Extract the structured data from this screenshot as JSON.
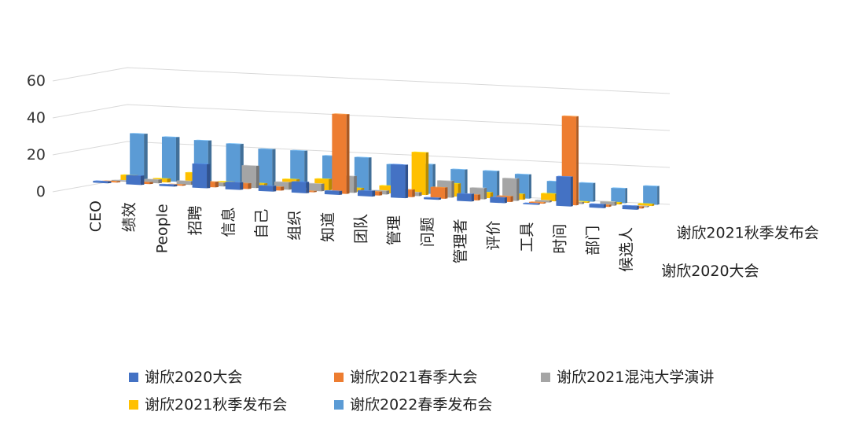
{
  "chart_data": {
    "type": "bar3d",
    "title": "",
    "categories": [
      "CEO",
      "绩效",
      "People",
      "招聘",
      "信息",
      "自己",
      "组织",
      "知道",
      "团队",
      "管理",
      "问题",
      "管理者",
      "评价",
      "工具",
      "时间",
      "部门",
      "候选人"
    ],
    "series": [
      {
        "name": "谢欣2020大会",
        "color": "#4472C4",
        "values": [
          1,
          5,
          1,
          13,
          4,
          3,
          6,
          2,
          3,
          18,
          1,
          4,
          3,
          0,
          16,
          2,
          2
        ]
      },
      {
        "name": "谢欣2021春季大会",
        "color": "#ED7D31",
        "values": [
          0,
          1,
          0,
          3,
          3,
          2,
          0,
          43,
          2,
          4,
          6,
          3,
          3,
          0,
          48,
          1,
          1
        ]
      },
      {
        "name": "谢欣2021混沌大学演讲",
        "color": "#A5A5A5",
        "values": [
          0,
          2,
          2,
          2,
          12,
          4,
          4,
          9,
          2,
          2,
          9,
          6,
          12,
          1,
          1,
          2,
          0
        ]
      },
      {
        "name": "谢欣2021秋季发布会",
        "color": "#FFC000",
        "values": [
          3,
          2,
          6,
          2,
          2,
          5,
          6,
          2,
          4,
          23,
          7,
          3,
          3,
          4,
          0,
          1,
          1
        ]
      },
      {
        "name": "谢欣2022春季发布会",
        "color": "#5B9BD5",
        "values": [
          25,
          24,
          23,
          22,
          20,
          20,
          18,
          18,
          15,
          16,
          14,
          14,
          13,
          10,
          10,
          8,
          10
        ]
      }
    ],
    "visible_series_axis_labels": [
      "谢欣2021秋季发布会",
      "谢欣2020大会"
    ],
    "zlabel_ticks": [
      0,
      20,
      40,
      60
    ],
    "zlim": [
      0,
      60
    ],
    "legend_position": "bottom"
  }
}
